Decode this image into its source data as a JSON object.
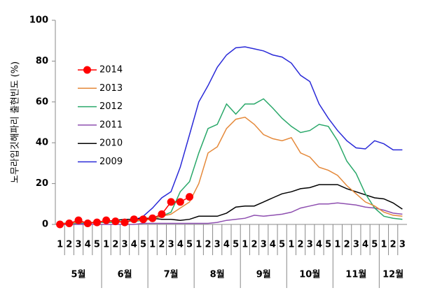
{
  "chart_data": {
    "type": "line",
    "y_label": "노무라입깃해파리 출현빈도 (%)",
    "category_groups": [
      {
        "label": "5월",
        "categories": [
          "1",
          "2",
          "3",
          "4",
          "5"
        ]
      },
      {
        "label": "6월",
        "categories": [
          "1",
          "2",
          "3",
          "4",
          "5"
        ]
      },
      {
        "label": "7월",
        "categories": [
          "1",
          "2",
          "3",
          "4",
          "5"
        ]
      },
      {
        "label": "8월",
        "categories": [
          "1",
          "2",
          "3",
          "4",
          "5"
        ]
      },
      {
        "label": "9월",
        "categories": [
          "1",
          "2",
          "3",
          "4",
          "5"
        ]
      },
      {
        "label": "10월",
        "categories": [
          "1",
          "2",
          "3",
          "4",
          "5"
        ]
      },
      {
        "label": "11월",
        "categories": [
          "1",
          "2",
          "3",
          "4",
          "5"
        ]
      },
      {
        "label": "12월",
        "categories": [
          "1",
          "2",
          "3"
        ]
      }
    ],
    "ylim": [
      0,
      100
    ],
    "yticks": [
      0,
      20,
      40,
      60,
      80,
      100
    ],
    "legend": "upper-left",
    "series": [
      {
        "name": "2014",
        "color": "#ff0000",
        "marker": true,
        "values": [
          0,
          0.5,
          2,
          0.5,
          1,
          2,
          1.5,
          1,
          2.5,
          2.5,
          3,
          5,
          11,
          11,
          13.5,
          null,
          null,
          null,
          null,
          null,
          null,
          null,
          null,
          null,
          null,
          null,
          null,
          null,
          null,
          null,
          null,
          null,
          null,
          null,
          null,
          null,
          null,
          null
        ]
      },
      {
        "name": "2013",
        "color": "#e5893a",
        "values": [
          0.5,
          0.5,
          1,
          1,
          1,
          1.5,
          1.5,
          1.5,
          2,
          2,
          2.5,
          4,
          5,
          8,
          11,
          20,
          35,
          38,
          47,
          51.5,
          52.5,
          49,
          44,
          42,
          41,
          42.5,
          35,
          33,
          28,
          26.5,
          24,
          19,
          15,
          11,
          9,
          6,
          4.5,
          4
        ]
      },
      {
        "name": "2012",
        "color": "#2aa86a",
        "values": [
          0.5,
          0.5,
          0.5,
          1,
          1,
          1,
          1,
          1.5,
          1.5,
          2,
          3,
          4,
          6,
          16,
          21,
          35,
          47,
          49,
          59,
          54,
          59,
          59,
          61.5,
          57,
          52,
          48,
          45,
          46,
          49,
          48,
          41,
          31,
          25,
          15,
          8,
          4,
          3,
          2.5
        ]
      },
      {
        "name": "2011",
        "color": "#8e4fb0",
        "values": [
          0,
          0,
          0,
          0,
          0,
          0,
          0,
          0,
          0,
          0.5,
          0.5,
          0.5,
          0.5,
          0.5,
          0.5,
          0.5,
          0.5,
          1,
          2,
          2.5,
          3,
          4.5,
          4,
          4.5,
          5,
          6,
          8,
          9,
          10,
          10,
          10.5,
          10,
          9.5,
          8.5,
          8,
          7,
          5.5,
          5
        ]
      },
      {
        "name": "2010",
        "color": "#000000",
        "values": [
          0.5,
          0.5,
          1,
          1,
          1,
          1.5,
          2,
          2.5,
          2.5,
          3,
          3,
          2.5,
          2.5,
          2,
          2.5,
          4,
          4,
          4,
          5.5,
          8.5,
          9,
          9,
          11,
          13,
          15,
          16,
          17.5,
          18,
          19.5,
          19.5,
          19.5,
          17.5,
          16,
          14.5,
          13,
          12.5,
          10.5,
          7.5
        ]
      },
      {
        "name": "2009",
        "color": "#2a2ad8",
        "values": [
          0.5,
          0.5,
          0.5,
          0.5,
          1,
          1,
          1,
          1.5,
          2,
          4,
          8,
          13,
          16,
          28,
          44,
          60,
          68,
          77,
          83,
          86.5,
          87,
          86,
          85,
          83,
          82,
          79,
          73,
          70,
          59,
          52,
          46,
          41,
          37.5,
          37,
          41,
          39.5,
          36.5,
          36.5
        ]
      }
    ]
  }
}
